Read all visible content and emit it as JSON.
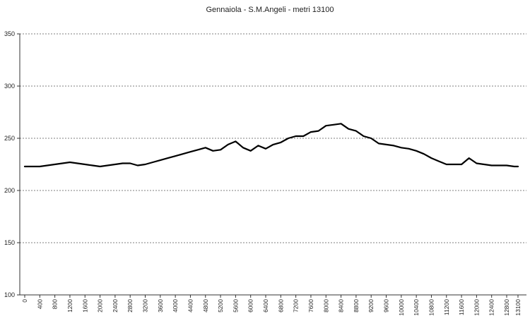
{
  "chart_data": {
    "type": "line",
    "title": "Gennaiola  - S.M.Angeli - metri 13100",
    "xlabel": "",
    "ylabel": "",
    "xlim": [
      0,
      13100
    ],
    "ylim": [
      100,
      350
    ],
    "grid": true,
    "legend": "none",
    "y_ticks": [
      100,
      150,
      200,
      250,
      300,
      350
    ],
    "x_ticks": [
      0,
      400,
      800,
      1200,
      1600,
      2000,
      2400,
      2800,
      3200,
      3600,
      4000,
      4400,
      4800,
      5200,
      5600,
      6000,
      6400,
      6800,
      7200,
      7600,
      8000,
      8400,
      8800,
      9200,
      9600,
      10000,
      10400,
      10800,
      11200,
      11600,
      12000,
      12400,
      12800,
      13100
    ],
    "series": [
      {
        "color": "#000000",
        "x": [
          0,
          200,
          400,
          600,
          800,
          1000,
          1200,
          1400,
          1600,
          1800,
          2000,
          2200,
          2400,
          2600,
          2800,
          3000,
          3200,
          3400,
          3600,
          3800,
          4000,
          4200,
          4400,
          4600,
          4800,
          5000,
          5200,
          5400,
          5600,
          5800,
          6000,
          6200,
          6400,
          6600,
          6800,
          7000,
          7200,
          7400,
          7600,
          7800,
          8000,
          8200,
          8400,
          8600,
          8800,
          9000,
          9200,
          9400,
          9600,
          9800,
          10000,
          10200,
          10400,
          10600,
          10800,
          11000,
          11200,
          11400,
          11600,
          11800,
          12000,
          12200,
          12400,
          12600,
          12800,
          13000,
          13100
        ],
        "values": [
          223,
          223,
          223,
          224,
          225,
          226,
          227,
          226,
          225,
          224,
          223,
          224,
          225,
          226,
          226,
          224,
          225,
          227,
          229,
          231,
          233,
          235,
          237,
          239,
          241,
          238,
          239,
          244,
          247,
          241,
          238,
          243,
          240,
          244,
          246,
          250,
          252,
          252,
          256,
          257,
          262,
          263,
          264,
          259,
          257,
          252,
          250,
          245,
          244,
          243,
          241,
          240,
          238,
          235,
          231,
          228,
          225,
          225,
          225,
          231,
          226,
          225,
          224,
          224,
          224,
          223,
          223
        ]
      }
    ]
  }
}
